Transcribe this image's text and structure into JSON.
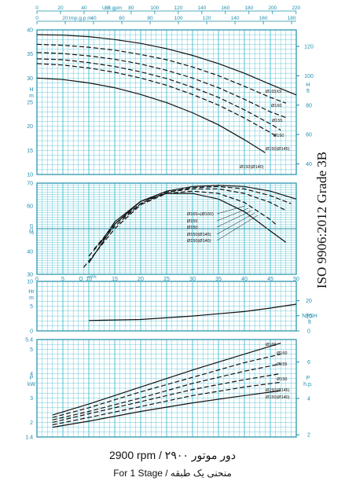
{
  "colors": {
    "grid": "#29b3c9",
    "frame": "#1a8fa8",
    "axis_text": "#1f8fb0",
    "curve": "#111111"
  },
  "top_axis": {
    "usgpm_label": "U.S.gpm",
    "usgpm_ticks": [
      "0",
      "20",
      "40",
      "60",
      "80",
      "100",
      "120",
      "140",
      "160",
      "180",
      "200",
      "220"
    ],
    "impgpm_label": "Imp.g.p.m.",
    "impgpm_ticks": [
      "0",
      "20",
      "40",
      "60",
      "80",
      "100",
      "120",
      "140",
      "160",
      "180"
    ]
  },
  "side_label": "ISO 9906:2012 Grade 3B",
  "footer": {
    "line1": "2900 rpm / دور موتور ۲۹۰۰",
    "line2": "For 1 Stage / منحنی یک طبقه"
  },
  "chart_data": [
    {
      "type": "line",
      "panel": "head",
      "y_label_left": [
        "H",
        "m"
      ],
      "y_label_right": [
        "H",
        "ft"
      ],
      "x_range": [
        0,
        50
      ],
      "y_range": [
        10,
        40
      ],
      "y_ticks": [
        "10",
        "15",
        "20",
        "25",
        "30",
        "35",
        "40"
      ],
      "y2_ticks": [
        "40",
        "60",
        "80",
        "100",
        "120"
      ],
      "series": [
        {
          "name": "Ø165X9",
          "style": "solid",
          "x": [
            0,
            5,
            10,
            15,
            20,
            25,
            30,
            35,
            40,
            45,
            50
          ],
          "y": [
            39,
            38.9,
            38.6,
            38,
            37.2,
            36.1,
            34.7,
            33,
            31,
            28.7,
            26.5
          ]
        },
        {
          "name": "Ø160",
          "style": "dashed",
          "x": [
            0,
            5,
            10,
            15,
            20,
            25,
            30,
            35,
            40,
            45,
            48
          ],
          "y": [
            37,
            36.8,
            36.4,
            35.8,
            34.9,
            33.8,
            32.3,
            30.5,
            28.3,
            26,
            24.8
          ]
        },
        {
          "name": "Ø155",
          "style": "dashed",
          "x": [
            0,
            5,
            10,
            15,
            20,
            25,
            30,
            35,
            40,
            45,
            48
          ],
          "y": [
            35.3,
            35.1,
            34.6,
            33.9,
            32.9,
            31.6,
            30,
            28,
            25.6,
            23,
            21.8
          ]
        },
        {
          "name": "Ø150",
          "style": "dashed",
          "x": [
            0,
            5,
            10,
            15,
            20,
            25,
            30,
            35,
            40,
            45,
            47
          ],
          "y": [
            34,
            33.8,
            33.2,
            32.4,
            31.3,
            29.9,
            28.1,
            26,
            23.4,
            20.5,
            19.2
          ]
        },
        {
          "name": "Ø150(Ø145)",
          "style": "dashed",
          "x": [
            0,
            5,
            10,
            15,
            20,
            25,
            30,
            35,
            40,
            45,
            46
          ],
          "y": [
            33,
            32.7,
            32.1,
            31.2,
            30,
            28.5,
            26.6,
            24.4,
            21.7,
            18.7,
            18
          ]
        },
        {
          "name": "Ø150(Ø140)",
          "style": "solid",
          "x": [
            0,
            5,
            10,
            15,
            20,
            25,
            30,
            35,
            40,
            43,
            44
          ],
          "y": [
            30,
            29.7,
            29,
            28,
            26.6,
            24.9,
            22.8,
            20.3,
            17.2,
            15.2,
            14.5
          ]
        }
      ]
    },
    {
      "type": "line",
      "panel": "efficiency",
      "y_label_left": [
        "η",
        "%"
      ],
      "x_label": [
        "Q",
        "m³/h"
      ],
      "x_range": [
        0,
        50
      ],
      "y_range": [
        30,
        70
      ],
      "x_ticks": [
        "0",
        "5",
        "10",
        "15",
        "20",
        "25",
        "30",
        "35",
        "40",
        "45",
        "50"
      ],
      "y_ticks": [
        "30",
        "40",
        "η",
        "60",
        "70"
      ],
      "series": [
        {
          "name": "Ø165+(Ø160)",
          "style": "solid",
          "x": [
            12,
            15,
            20,
            25,
            30,
            35,
            40,
            45,
            50
          ],
          "y": [
            43,
            53,
            62,
            66.5,
            68.5,
            69,
            68.5,
            66.5,
            63
          ]
        },
        {
          "name": "Ø155",
          "style": "dashed",
          "x": [
            11,
            15,
            20,
            25,
            30,
            35,
            40,
            45,
            49
          ],
          "y": [
            41,
            52,
            61,
            66,
            68,
            68.5,
            67.5,
            64.5,
            61
          ]
        },
        {
          "name": "Ø150",
          "style": "dashed",
          "x": [
            10,
            15,
            20,
            25,
            30,
            35,
            40,
            45,
            48
          ],
          "y": [
            38,
            51,
            61,
            66,
            67.5,
            67.5,
            65.5,
            61.5,
            58
          ]
        },
        {
          "name": "Ø150(Ø145)",
          "style": "dashed",
          "x": [
            9,
            15,
            20,
            25,
            30,
            35,
            40,
            45,
            46
          ],
          "y": [
            33,
            50,
            60.5,
            65.5,
            66.5,
            65.5,
            61.5,
            54,
            52
          ]
        },
        {
          "name": "Ø150(Ø140)",
          "style": "solid",
          "x": [
            10,
            15,
            20,
            25,
            30,
            35,
            40,
            45,
            48
          ],
          "y": [
            35,
            52,
            62,
            65.5,
            65.5,
            63,
            57.5,
            49,
            44
          ]
        }
      ]
    },
    {
      "type": "line",
      "panel": "npsh",
      "y_label_left": [
        "Hr",
        "m"
      ],
      "y_label_right": [
        "NPSH",
        "ft"
      ],
      "x_range": [
        0,
        50
      ],
      "y_range": [
        0,
        10
      ],
      "y_ticks": [
        "0",
        "5",
        "10"
      ],
      "y2_ticks": [
        "0",
        "10",
        "20"
      ],
      "series": [
        {
          "name": "NPSH",
          "style": "solid",
          "x": [
            10,
            20,
            30,
            40,
            45,
            50
          ],
          "y": [
            2.1,
            2.3,
            3,
            3.9,
            4.6,
            5.4
          ]
        }
      ]
    },
    {
      "type": "line",
      "panel": "power",
      "y_label_left": [
        "P",
        "kW"
      ],
      "y_label_right": [
        "P",
        "h.p."
      ],
      "x_range": [
        0,
        50
      ],
      "y_range": [
        1.4,
        5.4
      ],
      "y_ticks": [
        "1.4",
        "2",
        "3",
        "4",
        "5",
        "5.4"
      ],
      "y2_ticks": [
        "2",
        "4",
        "6"
      ],
      "series": [
        {
          "name": "Ø165",
          "style": "solid",
          "x": [
            3,
            10,
            20,
            30,
            40,
            47
          ],
          "y": [
            2.3,
            2.75,
            3.45,
            4.15,
            4.8,
            5.25
          ]
        },
        {
          "name": "Ø160",
          "style": "dashed",
          "x": [
            3,
            10,
            20,
            30,
            40,
            47
          ],
          "y": [
            2.2,
            2.6,
            3.25,
            3.85,
            4.45,
            4.8
          ]
        },
        {
          "name": "Ø155",
          "style": "dashed",
          "x": [
            3,
            10,
            20,
            30,
            40,
            47
          ],
          "y": [
            2.1,
            2.45,
            3,
            3.6,
            4.1,
            4.4
          ]
        },
        {
          "name": "Ø150",
          "style": "dashed",
          "x": [
            3,
            10,
            20,
            30,
            40,
            47
          ],
          "y": [
            2,
            2.35,
            2.85,
            3.35,
            3.75,
            4
          ]
        },
        {
          "name": "Ø150(Ø145)",
          "style": "dashed",
          "x": [
            3,
            10,
            20,
            30,
            40,
            47
          ],
          "y": [
            1.9,
            2.2,
            2.65,
            3.1,
            3.45,
            3.65
          ]
        },
        {
          "name": "Ø150(Ø140)",
          "style": "solid",
          "x": [
            3,
            10,
            20,
            30,
            40,
            47
          ],
          "y": [
            1.8,
            2.05,
            2.45,
            2.8,
            3.1,
            3.3
          ]
        }
      ]
    }
  ]
}
